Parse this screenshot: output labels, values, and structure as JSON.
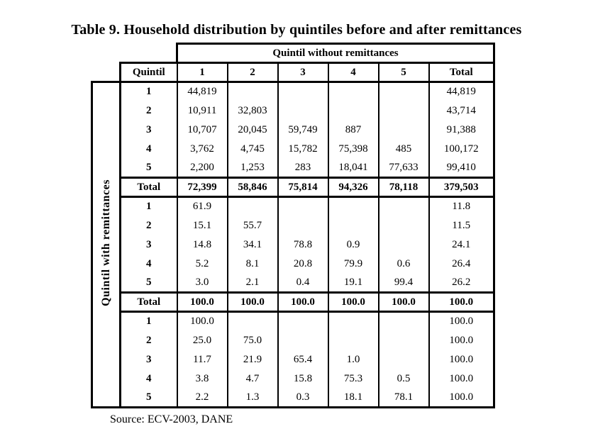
{
  "title": "Table 9. Household distribution by quintiles before and after remittances",
  "source": "Source: ECV-2003, DANE",
  "colors": {
    "border": "#000000",
    "background": "#ffffff",
    "text": "#000000"
  },
  "table": {
    "top_header": "Quintil without remittances",
    "row_axis_label": "Quintil with remittances",
    "col_header": [
      "Quintil",
      "1",
      "2",
      "3",
      "4",
      "5",
      "Total"
    ],
    "sections": [
      {
        "name": "household-counts",
        "rows": [
          {
            "label": "1",
            "values": [
              "44,819",
              "",
              "",
              "",
              "",
              "44,819"
            ]
          },
          {
            "label": "2",
            "values": [
              "10,911",
              "32,803",
              "",
              "",
              "",
              "43,714"
            ]
          },
          {
            "label": "3",
            "values": [
              "10,707",
              "20,045",
              "59,749",
              "887",
              "",
              "91,388"
            ]
          },
          {
            "label": "4",
            "values": [
              "3,762",
              "4,745",
              "15,782",
              "75,398",
              "485",
              "100,172"
            ]
          },
          {
            "label": "5",
            "values": [
              "2,200",
              "1,253",
              "283",
              "18,041",
              "77,633",
              "99,410"
            ]
          }
        ],
        "total": {
          "label": "Total",
          "values": [
            "72,399",
            "58,846",
            "75,814",
            "94,326",
            "78,118",
            "379,503"
          ]
        }
      },
      {
        "name": "column-percentages",
        "rows": [
          {
            "label": "1",
            "values": [
              "61.9",
              "",
              "",
              "",
              "",
              "11.8"
            ]
          },
          {
            "label": "2",
            "values": [
              "15.1",
              "55.7",
              "",
              "",
              "",
              "11.5"
            ]
          },
          {
            "label": "3",
            "values": [
              "14.8",
              "34.1",
              "78.8",
              "0.9",
              "",
              "24.1"
            ]
          },
          {
            "label": "4",
            "values": [
              "5.2",
              "8.1",
              "20.8",
              "79.9",
              "0.6",
              "26.4"
            ]
          },
          {
            "label": "5",
            "values": [
              "3.0",
              "2.1",
              "0.4",
              "19.1",
              "99.4",
              "26.2"
            ]
          }
        ],
        "total": {
          "label": "Total",
          "values": [
            "100.0",
            "100.0",
            "100.0",
            "100.0",
            "100.0",
            "100.0"
          ]
        }
      },
      {
        "name": "row-percentages",
        "rows": [
          {
            "label": "1",
            "values": [
              "100.0",
              "",
              "",
              "",
              "",
              "100.0"
            ]
          },
          {
            "label": "2",
            "values": [
              "25.0",
              "75.0",
              "",
              "",
              "",
              "100.0"
            ]
          },
          {
            "label": "3",
            "values": [
              "11.7",
              "21.9",
              "65.4",
              "1.0",
              "",
              "100.0"
            ]
          },
          {
            "label": "4",
            "values": [
              "3.8",
              "4.7",
              "15.8",
              "75.3",
              "0.5",
              "100.0"
            ]
          },
          {
            "label": "5",
            "values": [
              "2.2",
              "1.3",
              "0.3",
              "18.1",
              "78.1",
              "100.0"
            ]
          }
        ],
        "total": null
      }
    ]
  }
}
